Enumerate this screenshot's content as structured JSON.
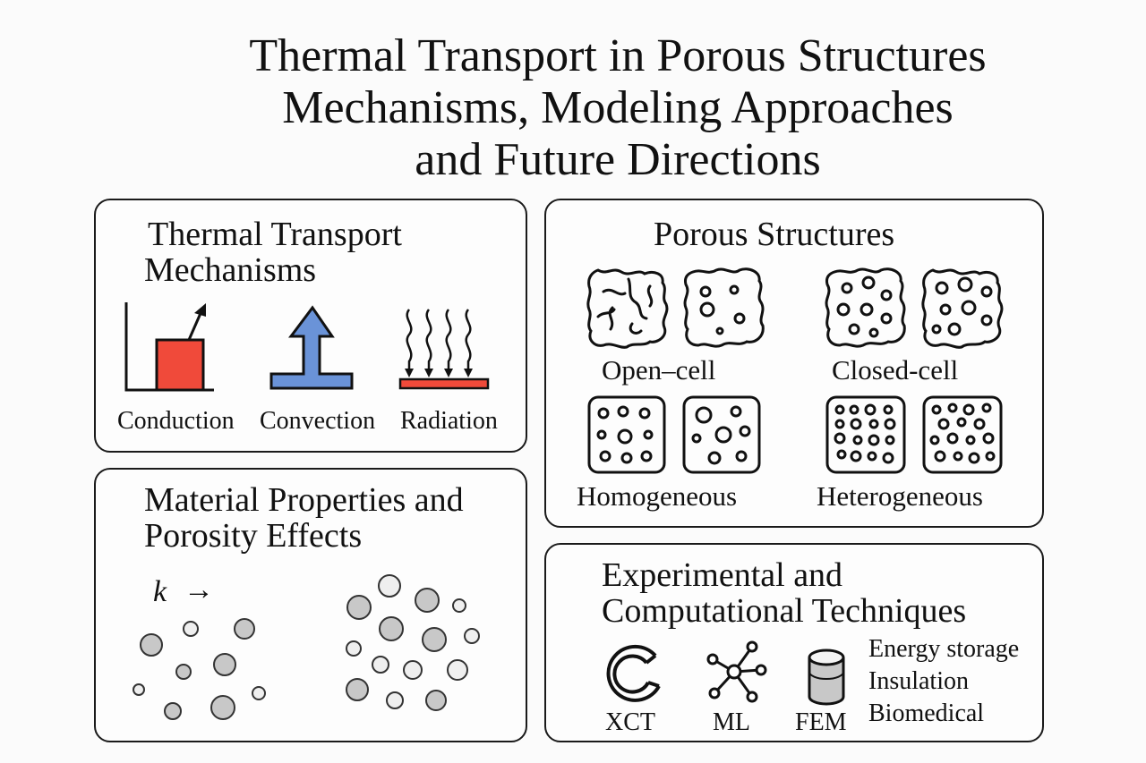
{
  "title": {
    "line1": "Thermal Transport in Porous Structures",
    "line2": "Mechanisms, Modeling Approaches",
    "line3": "and Future Directions"
  },
  "mechanisms": {
    "title_line1": "Thermal Transport",
    "title_line2": "Mechanisms",
    "conduction": "Conduction",
    "convection": "Convection",
    "radiation": "Radiation",
    "colors": {
      "conduction": "#f04a3a",
      "convection": "#6a93d8",
      "radiation": "#f04a3a"
    }
  },
  "porous": {
    "title": "Porous Structures",
    "open_cell": "Open–cell",
    "closed_cell": "Closed-cell",
    "homogeneous": "Homogeneous",
    "heterogeneous": "Heterogeneous"
  },
  "material": {
    "title_line1": "Material Properties and",
    "title_line2": "Porosity Effects",
    "k_symbol": "k",
    "arrow": "→"
  },
  "techniques": {
    "title_line1": "Experimental and",
    "title_line2": "Computational Techniques",
    "xct": "XCT",
    "ml": "ML",
    "fem": "FEM",
    "applications": [
      "Energy storage",
      "Insulation",
      "Biomedical"
    ]
  }
}
